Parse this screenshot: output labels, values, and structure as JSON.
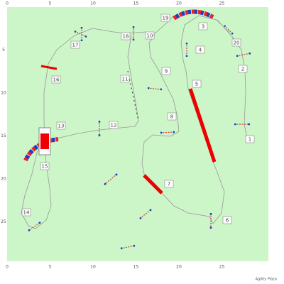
{
  "axis": {
    "top": [
      "0",
      "5",
      "10",
      "15",
      "20",
      "25"
    ],
    "left": [
      "5",
      "10",
      "15",
      "20",
      "25"
    ],
    "bottom": [
      "0",
      "5",
      "10",
      "15",
      "20",
      "25"
    ]
  },
  "obstacles": [
    {
      "label": "1"
    },
    {
      "label": "2"
    },
    {
      "label": "3"
    },
    {
      "label": "4"
    },
    {
      "label": "5"
    },
    {
      "label": "6"
    },
    {
      "label": "7"
    },
    {
      "label": "8"
    },
    {
      "label": "9"
    },
    {
      "label": "10"
    },
    {
      "label": "11"
    },
    {
      "label": "12"
    },
    {
      "label": "13"
    },
    {
      "label": "14"
    },
    {
      "label": "15"
    },
    {
      "label": "16"
    },
    {
      "label": "17"
    },
    {
      "label": "18"
    },
    {
      "label": "19"
    },
    {
      "label": "20"
    }
  ],
  "footer": "Agility Plaza"
}
